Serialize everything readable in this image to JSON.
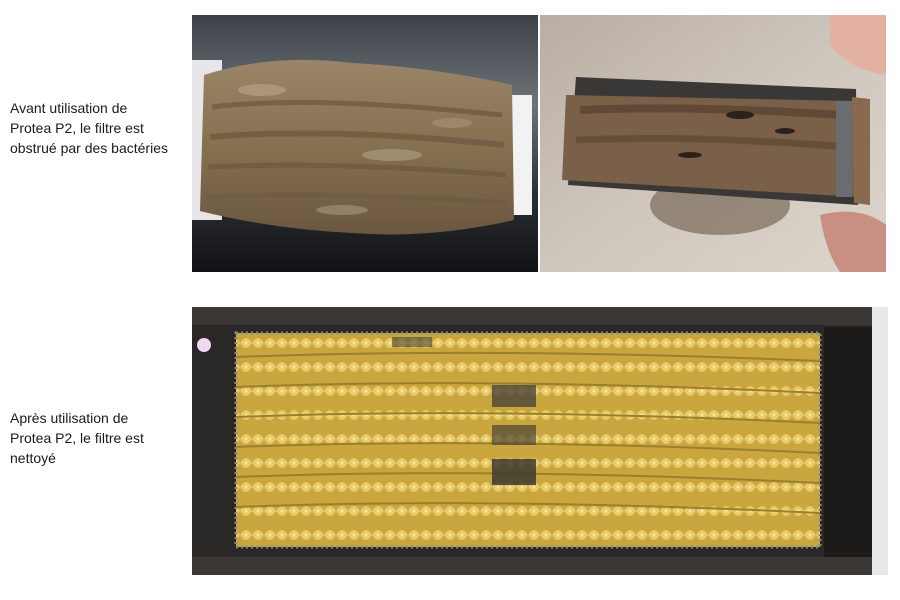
{
  "captions": {
    "before": {
      "line1": "Avant utilisation de",
      "line2": "Protea P2, le filtre est",
      "line3": "obstrué par des bactéries"
    },
    "after": {
      "line1": "Après utilisation de",
      "line2": "Protea P2, le filtre est",
      "line3": "nettoyé"
    }
  },
  "photos": [
    {
      "id": "before-left",
      "depicts": "clogged filter cartridge covered in brown sludge"
    },
    {
      "id": "before-right",
      "depicts": "clogged filter held in hand, brown deposit"
    },
    {
      "id": "after",
      "depicts": "cleaned filter with yellow ribbed fibres in dark frame"
    }
  ],
  "colors": {
    "sludge": "#8a7256",
    "sludge_dark": "#5d4a36",
    "fibre": "#d9b94a",
    "frame": "#2a2826"
  }
}
